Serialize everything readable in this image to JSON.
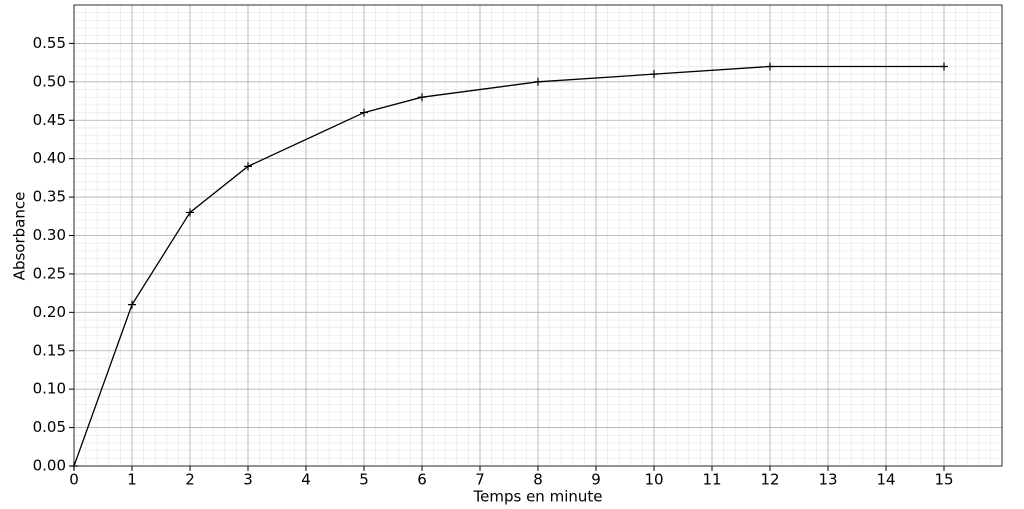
{
  "chart_data": {
    "type": "line",
    "xlabel": "Temps en minute",
    "ylabel": "Absorbance",
    "x": [
      0,
      1,
      2,
      3,
      5,
      6,
      8,
      10,
      12,
      15
    ],
    "values": [
      0,
      0.21,
      0.33,
      0.39,
      0.46,
      0.48,
      0.5,
      0.51,
      0.52,
      0.52
    ],
    "color": "#000000",
    "marker": "+",
    "xlim": [
      0,
      16
    ],
    "ylim": [
      0,
      0.6
    ],
    "xticks": [
      0,
      1,
      2,
      3,
      4,
      5,
      6,
      7,
      8,
      9,
      10,
      11,
      12,
      13,
      14,
      15
    ],
    "yticks": [
      {
        "value": 0,
        "label": "0.00"
      },
      {
        "value": 0.05,
        "label": "0.05"
      },
      {
        "value": 0.1,
        "label": "0.10"
      },
      {
        "value": 0.15,
        "label": "0.15"
      },
      {
        "value": 0.2,
        "label": "0.20"
      },
      {
        "value": 0.25,
        "label": "0.25"
      },
      {
        "value": 0.3,
        "label": "0.30"
      },
      {
        "value": 0.35,
        "label": "0.35"
      },
      {
        "value": 0.4,
        "label": "0.40"
      },
      {
        "value": 0.45,
        "label": "0.45"
      },
      {
        "value": 0.5,
        "label": "0.50"
      },
      {
        "value": 0.55,
        "label": "0.55"
      }
    ],
    "grid": true,
    "minor_grid": true
  }
}
